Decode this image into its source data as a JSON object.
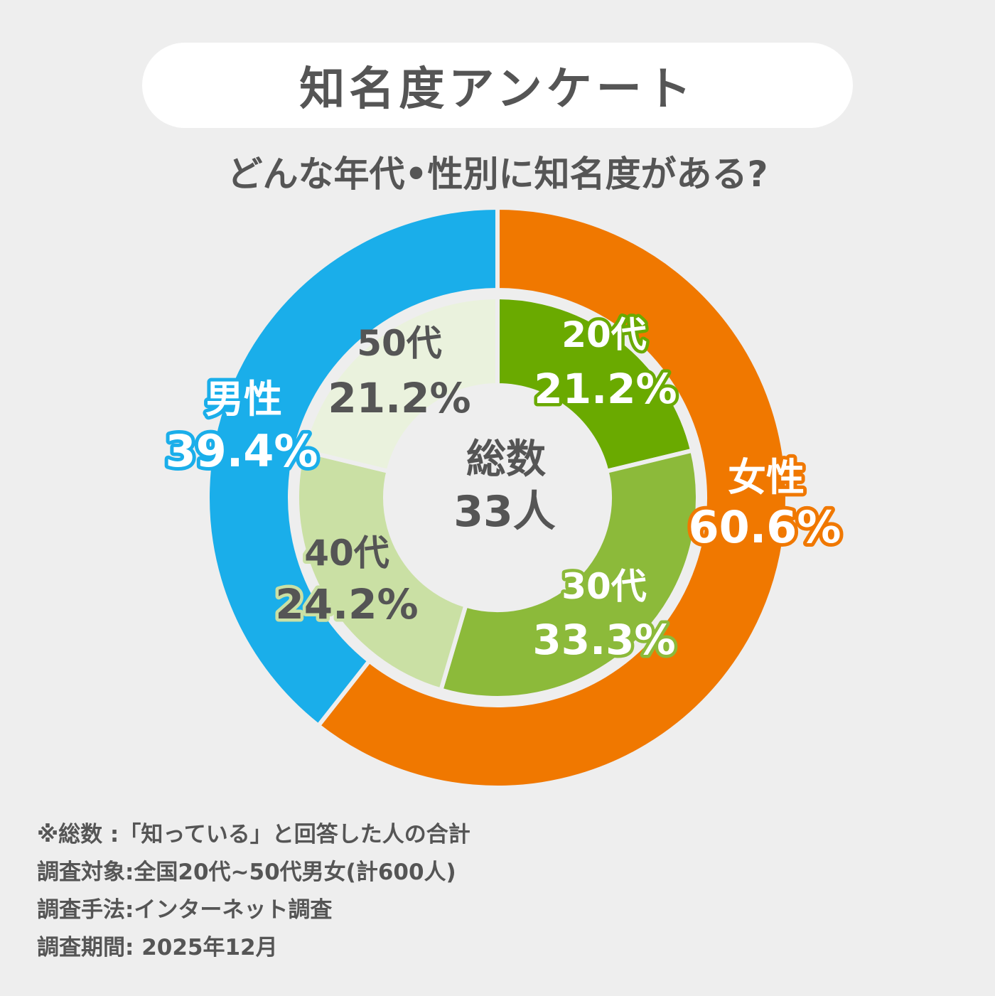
{
  "title": "知名度アンケート",
  "subtitle": "どんな年代•性別に知名度がある?",
  "colors": {
    "male": "#1aaeea",
    "female": "#f07800",
    "age20": "#6aaa00",
    "age30": "#8cba3a",
    "age40": "#cae0a4",
    "age50": "#eaf2dd",
    "text_dark": "#555555",
    "background": "#eeeeee"
  },
  "center": {
    "label": "総数",
    "value": "33人"
  },
  "chart_data": {
    "type": "pie",
    "subtype": "nested-donut",
    "total_label": "総数",
    "total_value": "33人",
    "outer_ring": {
      "categories": [
        "女性",
        "男性"
      ],
      "values": [
        60.6,
        39.4
      ],
      "labels": [
        "60.6%",
        "39.4%"
      ]
    },
    "inner_ring": {
      "categories": [
        "20代",
        "30代",
        "40代",
        "50代"
      ],
      "values": [
        21.2,
        33.3,
        24.2,
        21.2
      ],
      "labels": [
        "21.2%",
        "33.3%",
        "24.2%",
        "21.2%"
      ]
    }
  },
  "notes": [
    "※総数 :「知っている」と回答した人の合計",
    "調査対象:全国20代~50代男女(計600人)",
    "調査手法:インターネット調査",
    "調査期間: 2025年12月"
  ]
}
